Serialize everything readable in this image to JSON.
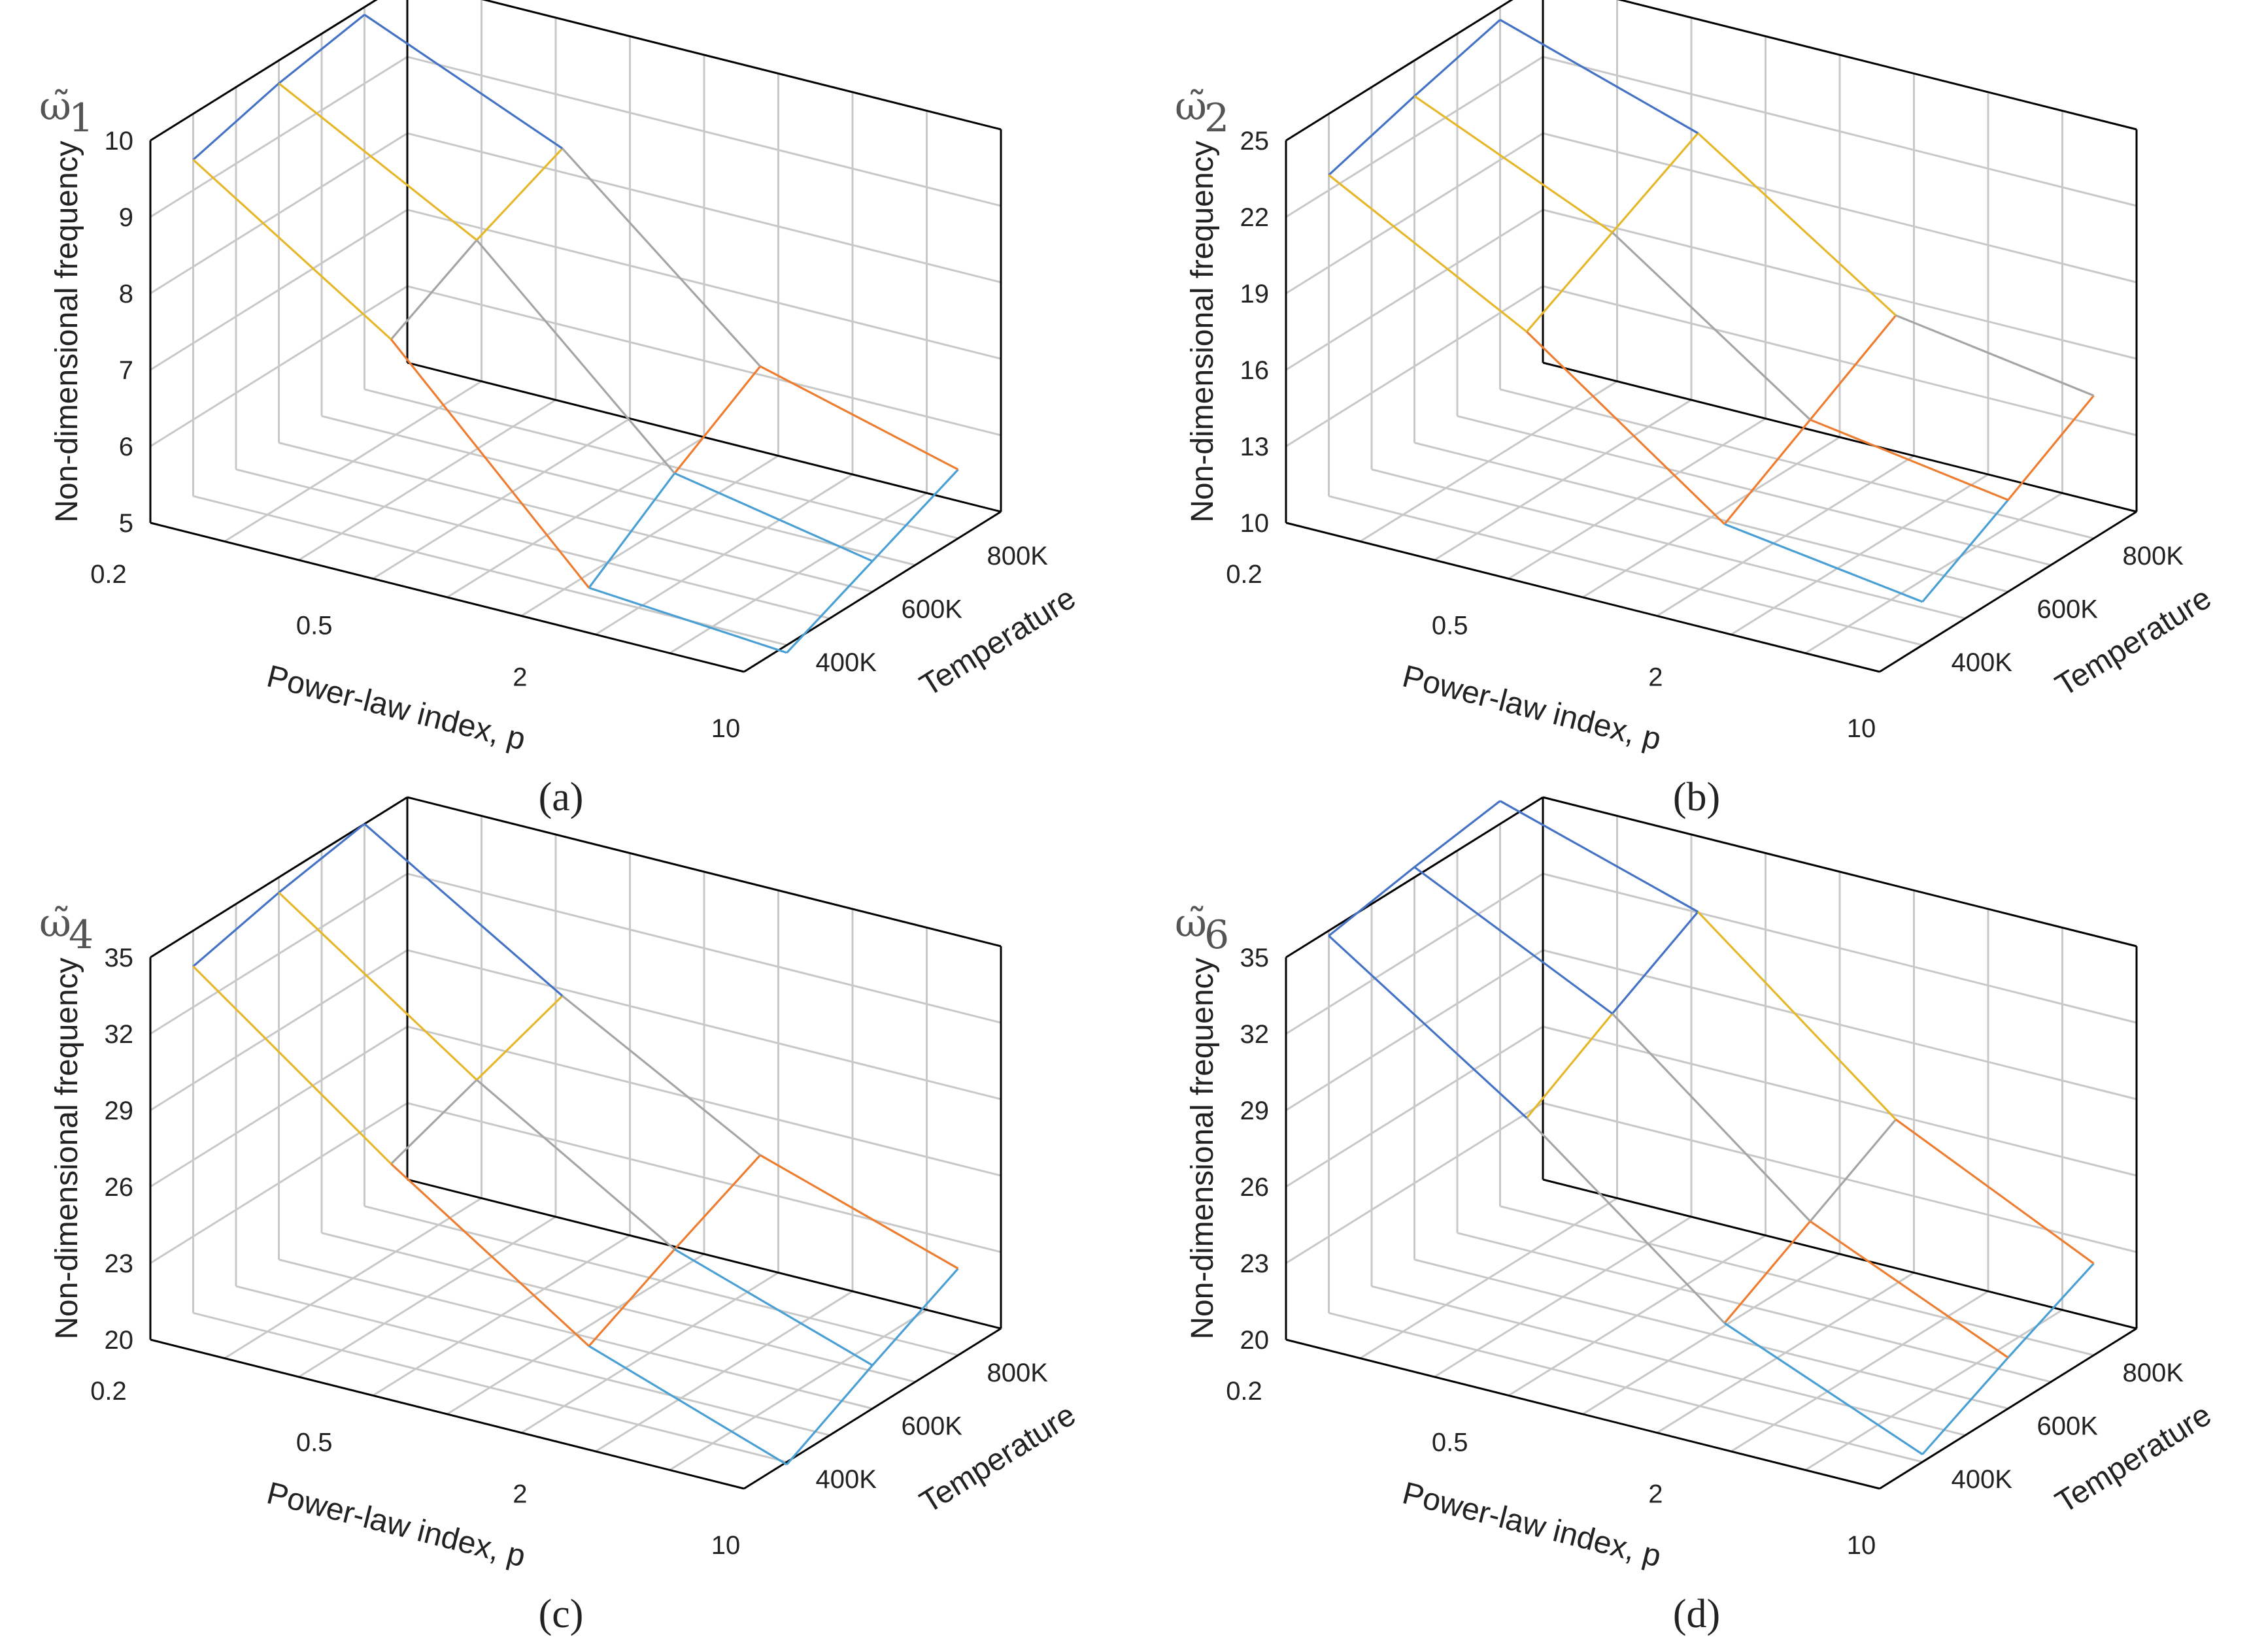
{
  "chart_data": [
    {
      "type": "surface-3d",
      "panel_label": "a",
      "caption": "(a)",
      "symbol_base": "ω̃",
      "symbol_sub": "1",
      "zlabel": "Non-dimensional frequency",
      "xlabel": "Power-law index, p",
      "ylabel": "Temperature",
      "x_categories": [
        "0.2",
        "0.5",
        "2",
        "10"
      ],
      "y_categories": [
        "400K",
        "600K",
        "800K"
      ],
      "zlim": [
        5,
        10
      ],
      "z_ticks": [
        "5",
        "6",
        "7",
        "8",
        "9",
        "10"
      ],
      "colors": [
        "#4472c4",
        "#e6b729",
        "#a5a5a5",
        "#ed7d31",
        "#4a9fd4"
      ],
      "band_size": 1,
      "z": [
        [
          9.4,
          9.7,
          9.9
        ],
        [
          7.7,
          8.3,
          8.8
        ],
        [
          5.1,
          5.9,
          6.6
        ],
        [
          4.9,
          5.4,
          5.9
        ]
      ]
    },
    {
      "type": "surface-3d",
      "panel_label": "b",
      "caption": "(b)",
      "symbol_base": "ω̃",
      "symbol_sub": "2",
      "zlabel": "Non-dimensional frequency",
      "xlabel": "Power-law index, p",
      "ylabel": "Temperature",
      "x_categories": [
        "0.2",
        "0.5",
        "2",
        "10"
      ],
      "y_categories": [
        "400K",
        "600K",
        "800K"
      ],
      "zlim": [
        10,
        25
      ],
      "z_ticks": [
        "10",
        "13",
        "16",
        "19",
        "22",
        "25"
      ],
      "colors": [
        "#4472c4",
        "#e6b729",
        "#a5a5a5",
        "#ed7d31",
        "#4a9fd4"
      ],
      "band_size": 3,
      "z": [
        [
          22.6,
          23.6,
          24.5
        ],
        [
          18.4,
          20.2,
          22.0
        ],
        [
          12.8,
          14.8,
          16.8
        ],
        [
          11.7,
          13.6,
          15.6
        ]
      ]
    },
    {
      "type": "surface-3d",
      "panel_label": "c",
      "caption": "(c)",
      "symbol_base": "ω̃",
      "symbol_sub": "4",
      "zlabel": "Non-dimensional frequency",
      "xlabel": "Power-law index, p",
      "ylabel": "Temperature",
      "x_categories": [
        "0.2",
        "0.5",
        "2",
        "10"
      ],
      "y_categories": [
        "400K",
        "600K",
        "800K"
      ],
      "zlim": [
        20,
        35
      ],
      "z_ticks": [
        "20",
        "23",
        "26",
        "29",
        "32",
        "35"
      ],
      "colors": [
        "#4472c4",
        "#e6b729",
        "#a5a5a5",
        "#ed7d31",
        "#4a9fd4"
      ],
      "band_size": 3,
      "z": [
        [
          33.6,
          34.4,
          35.0
        ],
        [
          27.8,
          29.0,
          30.2
        ],
        [
          22.6,
          24.3,
          25.9
        ],
        [
          19.9,
          21.7,
          23.4
        ]
      ]
    },
    {
      "type": "surface-3d",
      "panel_label": "d",
      "caption": "(d)",
      "symbol_base": "ω̃",
      "symbol_sub": "6",
      "zlabel": "Non-dimensional frequency",
      "xlabel": "Power-law index, p",
      "ylabel": "Temperature",
      "x_categories": [
        "0.2",
        "0.5",
        "2",
        "10"
      ],
      "y_categories": [
        "400K",
        "600K",
        "800K"
      ],
      "zlim": [
        20,
        35
      ],
      "z_ticks": [
        "20",
        "23",
        "26",
        "29",
        "32",
        "35"
      ],
      "colors": [
        "#4472c4",
        "#e6b729",
        "#a5a5a5",
        "#ed7d31",
        "#4a9fd4"
      ],
      "band_size": 3,
      "z": [
        [
          34.8,
          35.4,
          35.9
        ],
        [
          29.6,
          31.6,
          33.5
        ],
        [
          23.5,
          25.4,
          27.3
        ],
        [
          20.3,
          22.0,
          23.6
        ]
      ]
    }
  ]
}
